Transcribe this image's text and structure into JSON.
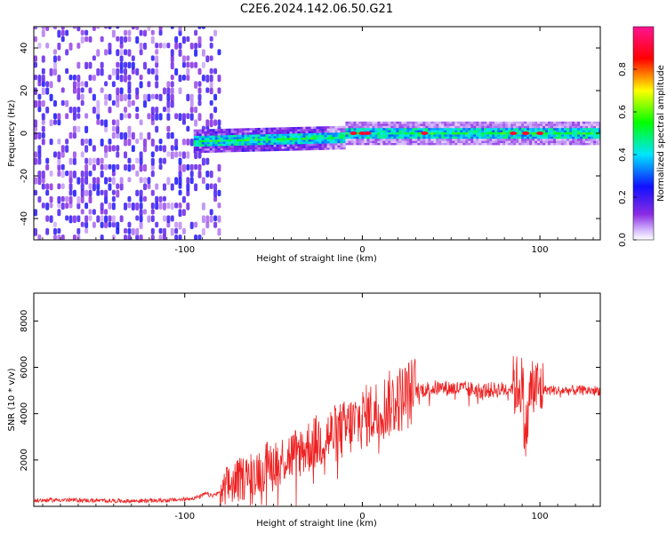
{
  "title": "C2E6.2024.142.06.50.G21",
  "chart_data": [
    {
      "type": "heatmap",
      "name": "spectrogram",
      "xlabel": "Height of straight line (km)",
      "ylabel": "Frequency (Hz)",
      "xlim": [
        -185,
        134
      ],
      "ylim": [
        -50,
        50
      ],
      "xticks": [
        -100,
        0,
        100
      ],
      "xtick_labels": [
        "-100",
        "0",
        "100"
      ],
      "yticks": [
        -40,
        -20,
        0,
        20,
        40
      ],
      "ytick_labels": [
        "-40",
        "-20",
        "0",
        "20",
        "40"
      ],
      "colorbar": {
        "label": "Normalized spectral amplitude",
        "range": [
          0,
          1
        ],
        "ticks": [
          0.0,
          0.2,
          0.4,
          0.6,
          0.8
        ],
        "tick_labels": [
          "0.0",
          "0.2",
          "0.4",
          "0.6",
          "0.8"
        ],
        "colors": [
          "#ffffff",
          "#8a2be2",
          "#0000ff",
          "#00e5ff",
          "#00ff00",
          "#ffff00",
          "#ff0000",
          "#ff1493"
        ]
      },
      "features": {
        "noise_region_x": [
          -185,
          -80
        ],
        "signal_band_center_hz": 0,
        "signal_band_halfwidth_hz": 2,
        "high_amplitude_points_x": [
          -5,
          0,
          3,
          35,
          85,
          92,
          100
        ]
      }
    },
    {
      "type": "line",
      "name": "snr",
      "xlabel": "Height of straight line (km)",
      "ylabel": "SNR (10 * v/v)",
      "xlim": [
        -185,
        134
      ],
      "ylim": [
        0,
        9200
      ],
      "xticks": [
        -100,
        0,
        100
      ],
      "xtick_labels": [
        "-100",
        "0",
        "100"
      ],
      "yticks": [
        2000,
        4000,
        6000,
        8000
      ],
      "ytick_labels": [
        "2000",
        "4000",
        "6000",
        "8000"
      ],
      "color": "#ee2222",
      "x": [
        -185,
        -170,
        -150,
        -130,
        -110,
        -100,
        -92,
        -88,
        -85,
        -80,
        -75,
        -70,
        -60,
        -50,
        -40,
        -30,
        -20,
        -10,
        0,
        10,
        20,
        30,
        40,
        50,
        60,
        70,
        80,
        85,
        90,
        92,
        95,
        100,
        110,
        120,
        134
      ],
      "y": [
        250,
        280,
        250,
        230,
        260,
        300,
        400,
        550,
        450,
        600,
        900,
        1100,
        1500,
        1900,
        2200,
        2600,
        3000,
        3300,
        3800,
        4200,
        4600,
        5000,
        5100,
        5100,
        5050,
        5000,
        5050,
        5150,
        5300,
        3000,
        5200,
        5050,
        5000,
        5000,
        5000
      ]
    }
  ]
}
